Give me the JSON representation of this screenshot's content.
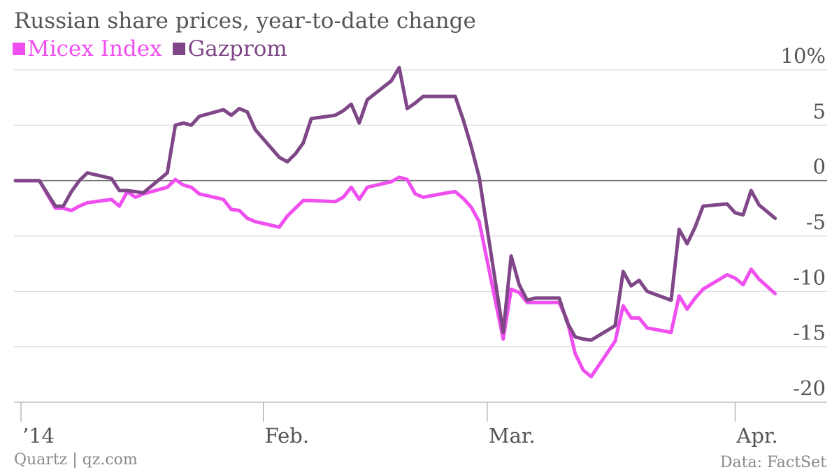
{
  "chart_data": {
    "type": "line",
    "title": "Russian share prices, year-to-date change",
    "xlabel": "",
    "ylabel": "",
    "ylim": [
      -20,
      10
    ],
    "y_ticks": [
      {
        "value": 10,
        "label": "10%"
      },
      {
        "value": 5,
        "label": "5"
      },
      {
        "value": 0,
        "label": "0"
      },
      {
        "value": -5,
        "label": "-5"
      },
      {
        "value": -10,
        "label": "-10"
      },
      {
        "value": -15,
        "label": "-15"
      },
      {
        "value": -20,
        "label": "-20"
      }
    ],
    "x_ticks": [
      {
        "date": "2014-01-01",
        "label": "’14"
      },
      {
        "date": "2014-02-01",
        "label": "Feb."
      },
      {
        "date": "2014-03-01",
        "label": "Mar."
      },
      {
        "date": "2014-04-01",
        "label": "Apr."
      }
    ],
    "x_range": [
      "2014-01-01",
      "2014-04-07"
    ],
    "grid": true,
    "legend_position": "top-left",
    "x": [
      "2014-01-01",
      "2014-01-03",
      "2014-01-04",
      "2014-01-06",
      "2014-01-07",
      "2014-01-08",
      "2014-01-09",
      "2014-01-10",
      "2014-01-13",
      "2014-01-14",
      "2014-01-15",
      "2014-01-16",
      "2014-01-17",
      "2014-01-20",
      "2014-01-21",
      "2014-01-22",
      "2014-01-23",
      "2014-01-24",
      "2014-01-27",
      "2014-01-28",
      "2014-01-29",
      "2014-01-30",
      "2014-01-31",
      "2014-02-03",
      "2014-02-04",
      "2014-02-05",
      "2014-02-06",
      "2014-02-07",
      "2014-02-10",
      "2014-02-11",
      "2014-02-12",
      "2014-02-13",
      "2014-02-14",
      "2014-02-17",
      "2014-02-18",
      "2014-02-19",
      "2014-02-20",
      "2014-02-21",
      "2014-02-24",
      "2014-02-25",
      "2014-02-26",
      "2014-02-27",
      "2014-02-28",
      "2014-03-03",
      "2014-03-04",
      "2014-03-05",
      "2014-03-06",
      "2014-03-07",
      "2014-03-10",
      "2014-03-11",
      "2014-03-12",
      "2014-03-13",
      "2014-03-14",
      "2014-03-17",
      "2014-03-18",
      "2014-03-19",
      "2014-03-20",
      "2014-03-21",
      "2014-03-24",
      "2014-03-25",
      "2014-03-26",
      "2014-03-27",
      "2014-03-28",
      "2014-03-31",
      "2014-04-01",
      "2014-04-02",
      "2014-04-03",
      "2014-04-04",
      "2014-04-06"
    ],
    "series": [
      {
        "name": "Micex Index",
        "color": "#f04ff0",
        "values": [
          0,
          0,
          0,
          -2.5,
          -2.5,
          -2.7,
          -2.3,
          -2.0,
          -1.7,
          -2.3,
          -1.0,
          -1.5,
          -1.2,
          -0.6,
          0.1,
          -0.4,
          -0.6,
          -1.2,
          -1.7,
          -2.6,
          -2.7,
          -3.4,
          -3.7,
          -4.2,
          -3.2,
          -2.5,
          -1.8,
          -1.8,
          -1.9,
          -1.5,
          -0.6,
          -1.7,
          -0.6,
          -0.1,
          0.3,
          0.1,
          -1.2,
          -1.5,
          -1.1,
          -1.0,
          -1.6,
          -2.4,
          -3.7,
          -14.3,
          -9.8,
          -10.1,
          -11.0,
          -11.0,
          -11.0,
          -12.6,
          -15.6,
          -17.1,
          -17.7,
          -14.5,
          -11.3,
          -12.4,
          -12.4,
          -13.3,
          -13.7,
          -10.4,
          -11.6,
          -10.6,
          -9.8,
          -8.5,
          -8.8,
          -9.4,
          -8.0,
          -8.9,
          -10.2
        ]
      },
      {
        "name": "Gazprom",
        "color": "#7f4788",
        "values": [
          0,
          0,
          0,
          -2.3,
          -2.3,
          -1.0,
          0,
          0.7,
          0.2,
          -0.9,
          -0.9,
          -1.0,
          -1.1,
          0.7,
          5.0,
          5.2,
          5.0,
          5.8,
          6.4,
          5.9,
          6.5,
          6.2,
          4.6,
          2.1,
          1.7,
          2.4,
          3.4,
          5.6,
          5.9,
          6.3,
          6.9,
          5.2,
          7.3,
          9.0,
          10.2,
          6.5,
          7.0,
          7.6,
          7.6,
          7.6,
          5.5,
          3.1,
          0.3,
          -13.7,
          -6.8,
          -9.4,
          -10.8,
          -10.6,
          -10.6,
          -12.8,
          -14.1,
          -14.3,
          -14.4,
          -13.1,
          -8.2,
          -9.5,
          -9.0,
          -10.0,
          -10.8,
          -4.4,
          -5.7,
          -4.2,
          -2.3,
          -2.1,
          -2.9,
          -3.1,
          -0.9,
          -2.2,
          -3.4
        ]
      }
    ]
  },
  "footer": {
    "credit": "Quartz | qz.com",
    "source": "Data: FactSet"
  }
}
